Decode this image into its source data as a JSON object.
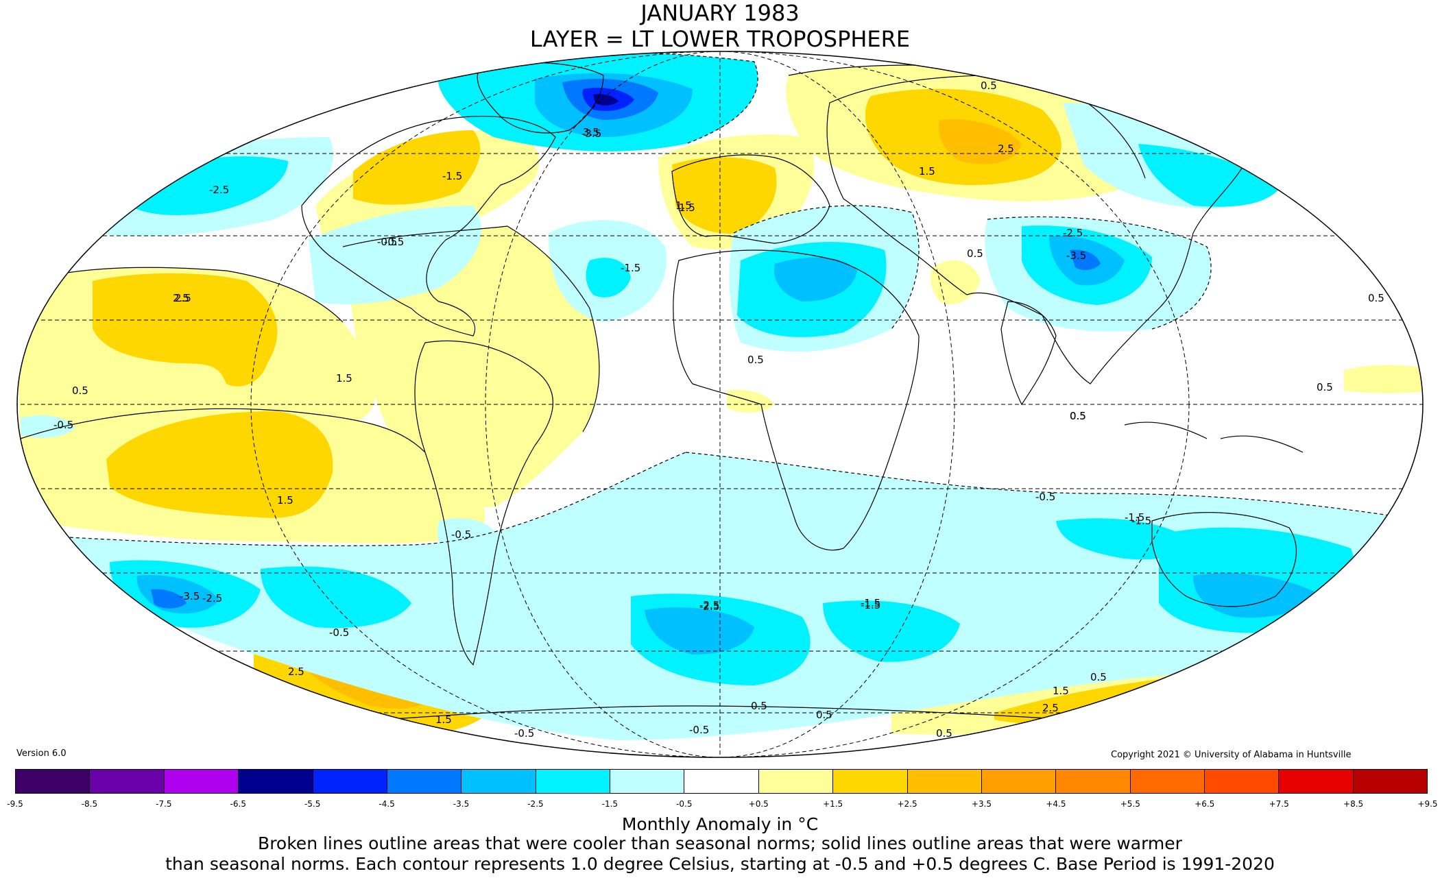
{
  "header": {
    "title_line1": "JANUARY 1983",
    "title_line2": "LAYER = LT LOWER TROPOSPHERE"
  },
  "version": "Version 6.0",
  "copyright": "Copyright 2021 © University of Alabama in Huntsville",
  "colorbar": {
    "colors": [
      "#3d0066",
      "#6a00a8",
      "#b000f0",
      "#00008f",
      "#0022ff",
      "#0078ff",
      "#00c0ff",
      "#00f2ff",
      "#c0ffff",
      "#ffffff",
      "#ffff99",
      "#ffd700",
      "#ffbf00",
      "#ffa000",
      "#ff8800",
      "#ff6a00",
      "#ff4a00",
      "#e60000",
      "#b80000"
    ],
    "ticks": [
      "-9.5",
      "-8.5",
      "-7.5",
      "-6.5",
      "-5.5",
      "-4.5",
      "-3.5",
      "-2.5",
      "-1.5",
      "-0.5",
      "+0.5",
      "+1.5",
      "+2.5",
      "+3.5",
      "+4.5",
      "+5.5",
      "+6.5",
      "+7.5",
      "+8.5",
      "+9.5"
    ]
  },
  "caption": {
    "units": "Monthly Anomaly in °C",
    "line1": "Broken lines outline areas that were cooler than seasonal norms; solid lines outline areas that were warmer",
    "line2": "than seasonal norms. Each contour represents 1.0 degree Celsius, starting at -0.5 and +0.5 degrees C. Base Period is 1991-2020"
  },
  "contour_labels": [
    "2.5",
    "1.5",
    "-0.5",
    "-2.5",
    "-1.5",
    "3.5",
    "-3.5",
    "0.5",
    "-0.5",
    "1.5",
    "2.5",
    "-1.5",
    "-2.5",
    "-3.5",
    "0.5",
    "1.5",
    "-0.5",
    "-2.5",
    "-1.5",
    "0.5",
    "2.5",
    "1.5",
    "-0.5",
    "-1.5",
    "-3.5",
    "-2.5",
    "-0.5",
    "2.5",
    "1.5",
    "-0.5",
    "0.5",
    "-2.5",
    "-1.5",
    "0.5",
    "0.5",
    "1.5",
    "2.5",
    "0.5",
    "-0.5",
    "1.5",
    "-1.5",
    "0.5",
    "0.5",
    "0.5",
    "-0.5",
    "0.5",
    "0.5"
  ],
  "map": {
    "anomaly_colors": {
      "warm1": "#ffff99",
      "warm2": "#ffd700",
      "warm3": "#ffbf00",
      "warm4": "#ffa000",
      "cool1": "#c0ffff",
      "cool2": "#00f2ff",
      "cool3": "#00c0ff",
      "cool4": "#0078ff",
      "cool5": "#0022ff",
      "cool6": "#00008f"
    }
  }
}
